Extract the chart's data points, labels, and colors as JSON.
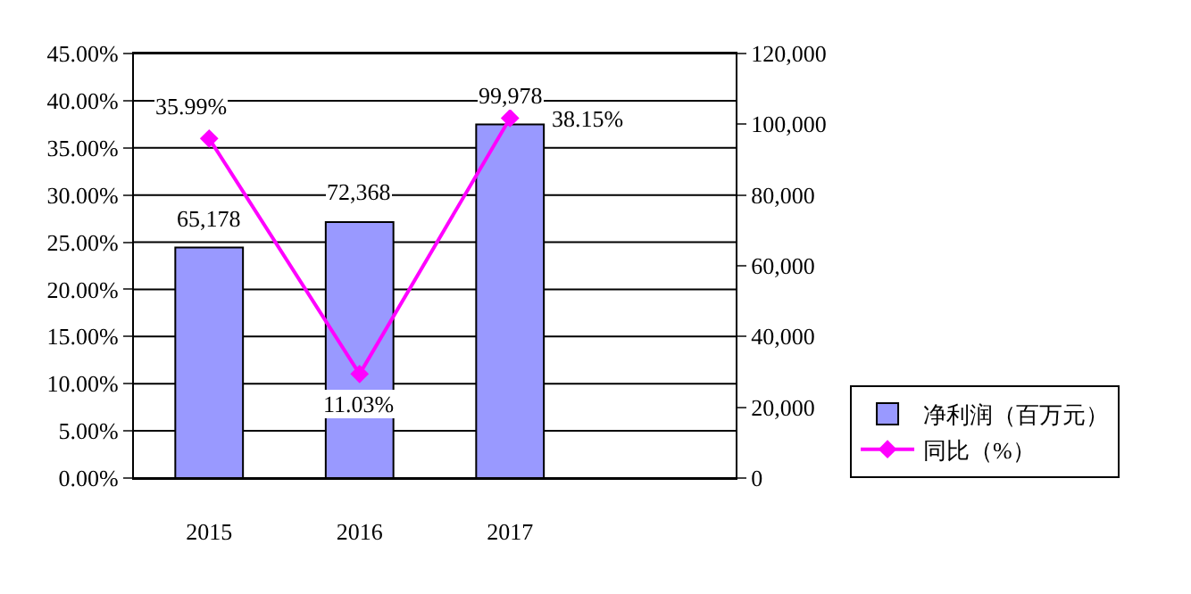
{
  "chart_data": {
    "type": "bar",
    "categories": [
      "2015",
      "2016",
      "2017",
      null
    ],
    "series": [
      {
        "name": "净利润（百万元）",
        "axis": "y2",
        "color": "#9999ff",
        "values": [
          65178,
          72368,
          99978,
          null
        ],
        "value_labels": [
          "65,178",
          "72,368",
          "99,978",
          null
        ]
      },
      {
        "name": "同比（%）",
        "type": "line",
        "axis": "y",
        "color": "#ff00ff",
        "marker": "diamond",
        "values": [
          35.99,
          11.03,
          38.15,
          null
        ],
        "value_labels": [
          "35.99%",
          "11.03%",
          "38.15%",
          null
        ]
      }
    ],
    "ylim": [
      0,
      45
    ],
    "yticks": [
      {
        "value": 0,
        "label": "0.00%"
      },
      {
        "value": 5,
        "label": "5.00%"
      },
      {
        "value": 10,
        "label": "10.00%"
      },
      {
        "value": 15,
        "label": "15.00%"
      },
      {
        "value": 20,
        "label": "20.00%"
      },
      {
        "value": 25,
        "label": "25.00%"
      },
      {
        "value": 30,
        "label": "30.00%"
      },
      {
        "value": 35,
        "label": "35.00%"
      },
      {
        "value": 40,
        "label": "40.00%"
      },
      {
        "value": 45,
        "label": "45.00%"
      }
    ],
    "y2lim": [
      0,
      120000
    ],
    "y2ticks": [
      0,
      {
        "value": 20000,
        "label": "20,000"
      },
      {
        "value": 40000,
        "label": "40,000"
      },
      {
        "value": 60000,
        "label": "60,000"
      },
      {
        "value": 80000,
        "label": "80,000"
      },
      {
        "value": 100000,
        "label": "100,000"
      },
      {
        "value": 120000,
        "label": "120,000"
      }
    ],
    "grid": "y",
    "legend": "bottom right"
  }
}
